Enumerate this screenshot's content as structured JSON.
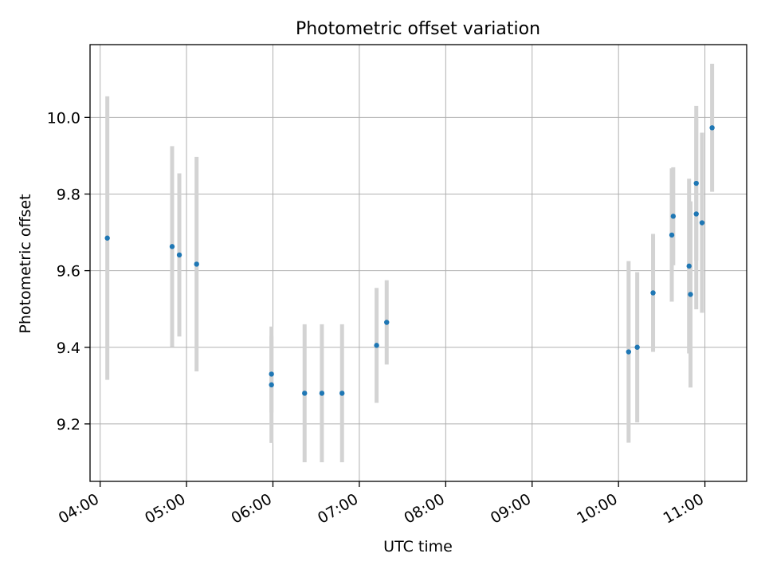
{
  "chart_data": {
    "type": "scatter",
    "title": "Photometric offset variation",
    "xlabel": "UTC time",
    "ylabel": "Photometric offset",
    "x_axis_type": "time",
    "xlim": [
      "03:53",
      "11:29"
    ],
    "ylim": [
      9.05,
      10.19
    ],
    "x_ticks": [
      "04:00",
      "05:00",
      "06:00",
      "07:00",
      "08:00",
      "09:00",
      "10:00",
      "11:00"
    ],
    "y_ticks": [
      9.2,
      9.4,
      9.6,
      9.8,
      10.0
    ],
    "grid": true,
    "point_color": "#1f77b4",
    "errorbar_color": "#d3d3d3",
    "series": [
      {
        "points": [
          {
            "t": "04:05",
            "y": 9.685,
            "err": 0.37
          },
          {
            "t": "04:50",
            "y": 9.663,
            "err": 0.262
          },
          {
            "t": "04:55",
            "y": 9.641,
            "err": 0.213
          },
          {
            "t": "05:07",
            "y": 9.617,
            "err": 0.28
          },
          {
            "t": "05:59",
            "y": 9.33,
            "err": 0.1
          },
          {
            "t": "05:59",
            "y": 9.302,
            "err": 0.152
          },
          {
            "t": "06:22",
            "y": 9.28,
            "err": 0.18
          },
          {
            "t": "06:34",
            "y": 9.28,
            "err": 0.18
          },
          {
            "t": "06:48",
            "y": 9.28,
            "err": 0.18
          },
          {
            "t": "07:12",
            "y": 9.405,
            "err": 0.15
          },
          {
            "t": "07:19",
            "y": 9.465,
            "err": 0.11
          },
          {
            "t": "10:07",
            "y": 9.388,
            "err": 0.237
          },
          {
            "t": "10:13",
            "y": 9.4,
            "err": 0.196
          },
          {
            "t": "10:24",
            "y": 9.542,
            "err": 0.154
          },
          {
            "t": "10:37",
            "y": 9.693,
            "err": 0.174
          },
          {
            "t": "10:38",
            "y": 9.742,
            "err": 0.128
          },
          {
            "t": "10:49",
            "y": 9.612,
            "err": 0.228
          },
          {
            "t": "10:50",
            "y": 9.538,
            "err": 0.243
          },
          {
            "t": "10:54",
            "y": 9.748,
            "err": 0.249
          },
          {
            "t": "10:54",
            "y": 9.828,
            "err": 0.202
          },
          {
            "t": "10:58",
            "y": 9.725,
            "err": 0.235
          },
          {
            "t": "11:05",
            "y": 9.973,
            "err": 0.167
          }
        ]
      }
    ]
  }
}
